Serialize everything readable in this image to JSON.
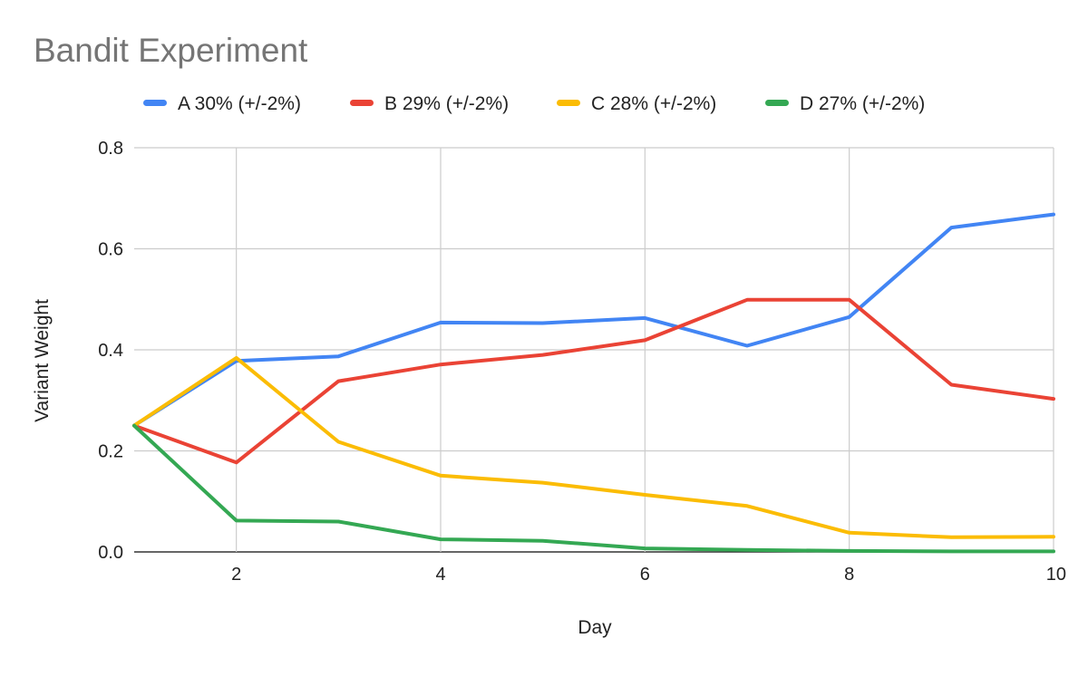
{
  "chart_data": {
    "type": "line",
    "title": "Bandit Experiment",
    "xlabel": "Day",
    "ylabel": "Variant Weight",
    "x": [
      1,
      2,
      3,
      4,
      5,
      6,
      7,
      8,
      9,
      10
    ],
    "xlim": [
      1,
      10
    ],
    "ylim": [
      0,
      0.8
    ],
    "xticks": [
      "2",
      "4",
      "6",
      "8",
      "10"
    ],
    "yticks": [
      "0.0",
      "0.2",
      "0.4",
      "0.6",
      "0.8"
    ],
    "grid": true,
    "legend_position": "top",
    "series": [
      {
        "name": "A 30% (+/-2%)",
        "color": "#4285f4",
        "values": [
          0.25,
          0.378,
          0.387,
          0.454,
          0.453,
          0.463,
          0.408,
          0.465,
          0.642,
          0.668
        ]
      },
      {
        "name": "B 29% (+/-2%)",
        "color": "#ea4335",
        "values": [
          0.25,
          0.177,
          0.338,
          0.371,
          0.39,
          0.419,
          0.499,
          0.499,
          0.331,
          0.303
        ]
      },
      {
        "name": "C 28% (+/-2%)",
        "color": "#fbbc04",
        "values": [
          0.25,
          0.384,
          0.218,
          0.151,
          0.137,
          0.113,
          0.091,
          0.038,
          0.029,
          0.03
        ]
      },
      {
        "name": "D 27% (+/-2%)",
        "color": "#34a853",
        "values": [
          0.25,
          0.062,
          0.06,
          0.025,
          0.022,
          0.007,
          0.004,
          0.002,
          0.001,
          0.001
        ]
      }
    ]
  }
}
